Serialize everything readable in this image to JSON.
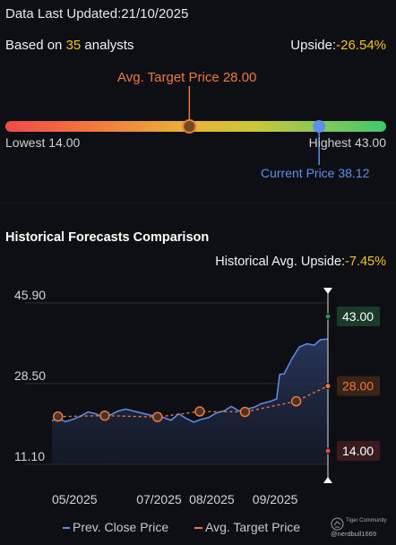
{
  "header": {
    "updated_label": "Data Last Updated:",
    "updated_date": "21/10/2025",
    "based_on_prefix": "Based on ",
    "analyst_count": "35",
    "based_on_suffix": " analysts",
    "upside_label": "Upside:",
    "upside_value": "-26.54%"
  },
  "price_range": {
    "avg_target_label": "Avg. Target Price 28.00",
    "lowest_label": "Lowest 14.00",
    "highest_label": "Highest 43.00",
    "current_label": "Current Price 38.12",
    "low": 14.0,
    "high": 43.0,
    "avg_target": 28.0,
    "current": 38.12
  },
  "historical": {
    "title": "Historical Forecasts Comparison",
    "avg_upside_label": "Historical Avg. Upside:",
    "avg_upside_value": "-7.45%"
  },
  "chart_data": {
    "type": "line",
    "title": "Historical Forecasts Comparison",
    "xlabel": "",
    "ylabel": "",
    "y_ticks": [
      "45.90",
      "28.50",
      "11.10"
    ],
    "x_ticks": [
      "05/2025",
      "07/2025",
      "08/2025",
      "09/2025"
    ],
    "ylim": [
      11.1,
      45.9
    ],
    "grid": true,
    "legend_position": "bottom",
    "x_range": [
      "2025-04-21",
      "2025-10-21"
    ],
    "x_tick_dates": [
      "2025-05-06",
      "2025-07-01",
      "2025-08-05",
      "2025-09-16"
    ],
    "series": [
      {
        "name": "Prev. Close Price",
        "color": "#5b8ff0",
        "x": [
          "2025-04-21",
          "2025-04-25",
          "2025-04-30",
          "2025-05-05",
          "2025-05-10",
          "2025-05-15",
          "2025-05-20",
          "2025-05-25",
          "2025-05-30",
          "2025-06-04",
          "2025-06-09",
          "2025-06-14",
          "2025-06-19",
          "2025-06-24",
          "2025-06-29",
          "2025-07-04",
          "2025-07-09",
          "2025-07-14",
          "2025-07-19",
          "2025-07-24",
          "2025-07-29",
          "2025-08-03",
          "2025-08-08",
          "2025-08-13",
          "2025-08-18",
          "2025-08-23",
          "2025-08-28",
          "2025-09-02",
          "2025-09-07",
          "2025-09-12",
          "2025-09-17",
          "2025-09-19",
          "2025-09-22",
          "2025-09-27",
          "2025-10-02",
          "2025-10-07",
          "2025-10-12",
          "2025-10-16",
          "2025-10-21"
        ],
        "values": [
          20.5,
          21.0,
          20.3,
          20.8,
          21.5,
          22.4,
          22.0,
          21.2,
          21.8,
          22.6,
          23.0,
          22.6,
          22.2,
          21.8,
          21.4,
          21.2,
          20.6,
          22.0,
          21.0,
          20.2,
          20.8,
          21.2,
          22.2,
          22.6,
          23.6,
          22.6,
          23.0,
          23.4,
          24.2,
          24.6,
          25.2,
          30.5,
          30.6,
          33.8,
          36.4,
          37.1,
          36.8,
          38.0,
          38.12
        ]
      },
      {
        "name": "Avg. Target Price",
        "color": "#f0783c",
        "x": [
          "2025-04-25",
          "2025-05-26",
          "2025-06-30",
          "2025-07-28",
          "2025-08-27",
          "2025-09-30",
          "2025-10-21"
        ],
        "values": [
          21.4,
          21.6,
          21.3,
          22.5,
          22.4,
          24.7,
          28.0
        ],
        "markers": true
      }
    ],
    "right_labels": [
      {
        "text": "43.00",
        "value": 43.0,
        "color": "#2f8c55",
        "bg": "#1b3a2a"
      },
      {
        "text": "28.00",
        "value": 28.0,
        "color": "#f0783c",
        "bg": "#3a2317"
      },
      {
        "text": "14.00",
        "value": 14.0,
        "color": "#e04a4a",
        "bg": "#3a1c1f"
      }
    ]
  },
  "legend": {
    "prev_close": "Prev. Close Price",
    "avg_target": "Avg. Target Price"
  },
  "footer": {
    "community_name": "Tiger Community",
    "user_handle": "@nerdbull1669"
  },
  "colors": {
    "background": "#0d0f14",
    "yellow_accent": "#f5c518",
    "current_blue": "#5b8ff0",
    "target_orange": "#f0783c"
  }
}
